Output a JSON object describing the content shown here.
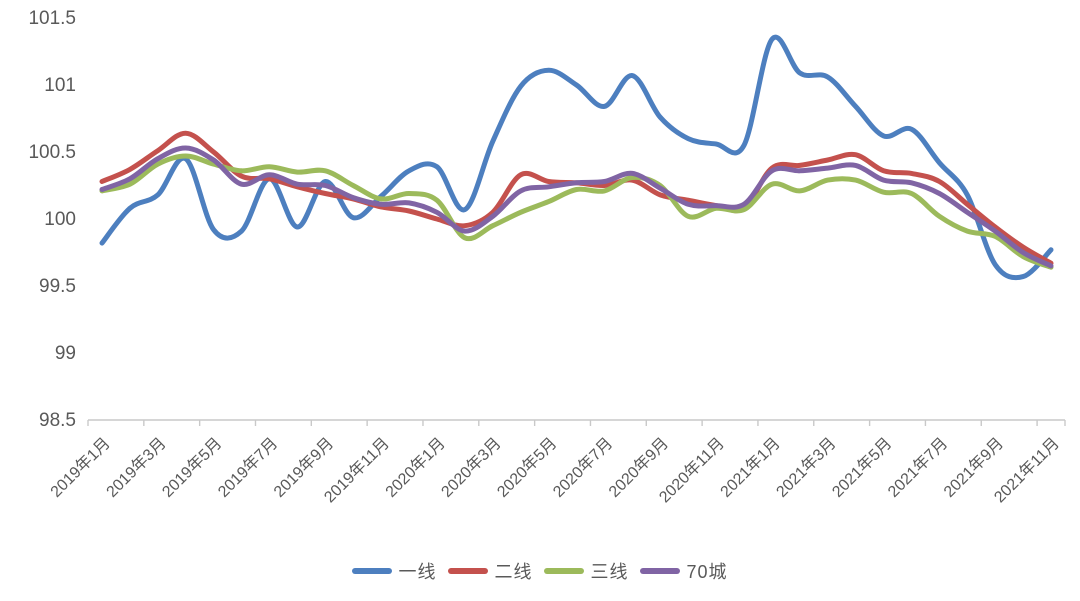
{
  "chart_data": {
    "type": "line",
    "title": "",
    "x": [
      "2019年1月",
      "2019年2月",
      "2019年3月",
      "2019年4月",
      "2019年5月",
      "2019年6月",
      "2019年7月",
      "2019年8月",
      "2019年9月",
      "2019年10月",
      "2019年11月",
      "2019年12月",
      "2020年1月",
      "2020年2月",
      "2020年3月",
      "2020年4月",
      "2020年5月",
      "2020年6月",
      "2020年7月",
      "2020年8月",
      "2020年9月",
      "2020年10月",
      "2020年11月",
      "2020年12月",
      "2021年1月",
      "2021年2月",
      "2021年3月",
      "2021年4月",
      "2021年5月",
      "2021年6月",
      "2021年7月",
      "2021年8月",
      "2021年9月",
      "2021年10月",
      "2021年11月"
    ],
    "x_label_interval": 2,
    "ylim": [
      98.5,
      101.5
    ],
    "y_ticks": [
      "98.5",
      "99",
      "99.5",
      "100",
      "100.5",
      "101",
      "101.5"
    ],
    "grid": false,
    "legend_position": "bottom",
    "axis_color": "#c9c9c9",
    "label_color": "#595959",
    "series": [
      {
        "name": "一线",
        "color": "#4d7fbf",
        "values": [
          99.82,
          100.08,
          100.18,
          100.45,
          99.92,
          99.91,
          100.3,
          99.94,
          100.28,
          100.01,
          100.17,
          100.36,
          100.39,
          100.07,
          100.58,
          100.99,
          101.11,
          101.0,
          100.84,
          101.07,
          100.76,
          100.6,
          100.56,
          100.55,
          101.34,
          101.09,
          101.06,
          100.84,
          100.62,
          100.67,
          100.42,
          100.18,
          99.66,
          99.57,
          99.77
        ]
      },
      {
        "name": "二线",
        "color": "#c4514d",
        "values": [
          100.28,
          100.37,
          100.51,
          100.64,
          100.5,
          100.32,
          100.3,
          100.24,
          100.19,
          100.15,
          100.09,
          100.06,
          100.0,
          99.95,
          100.05,
          100.33,
          100.28,
          100.27,
          100.25,
          100.29,
          100.18,
          100.14,
          100.1,
          100.08,
          100.38,
          100.4,
          100.44,
          100.48,
          100.36,
          100.34,
          100.28,
          100.11,
          99.94,
          99.79,
          99.67
        ]
      },
      {
        "name": "三线",
        "color": "#9cba5b",
        "values": [
          100.21,
          100.26,
          100.41,
          100.47,
          100.41,
          100.36,
          100.39,
          100.35,
          100.36,
          100.25,
          100.15,
          100.19,
          100.14,
          99.86,
          99.95,
          100.05,
          100.13,
          100.22,
          100.21,
          100.31,
          100.25,
          100.02,
          100.08,
          100.07,
          100.26,
          100.21,
          100.29,
          100.29,
          100.2,
          100.19,
          100.02,
          99.91,
          99.87,
          99.72,
          99.64
        ]
      },
      {
        "name": "70城",
        "color": "#8064a4",
        "values": [
          100.22,
          100.3,
          100.45,
          100.53,
          100.44,
          100.26,
          100.33,
          100.26,
          100.25,
          100.16,
          100.11,
          100.12,
          100.05,
          99.91,
          100.02,
          100.21,
          100.24,
          100.27,
          100.28,
          100.34,
          100.23,
          100.11,
          100.1,
          100.11,
          100.36,
          100.36,
          100.38,
          100.4,
          100.29,
          100.27,
          100.19,
          100.05,
          99.91,
          99.75,
          99.65
        ]
      }
    ]
  }
}
